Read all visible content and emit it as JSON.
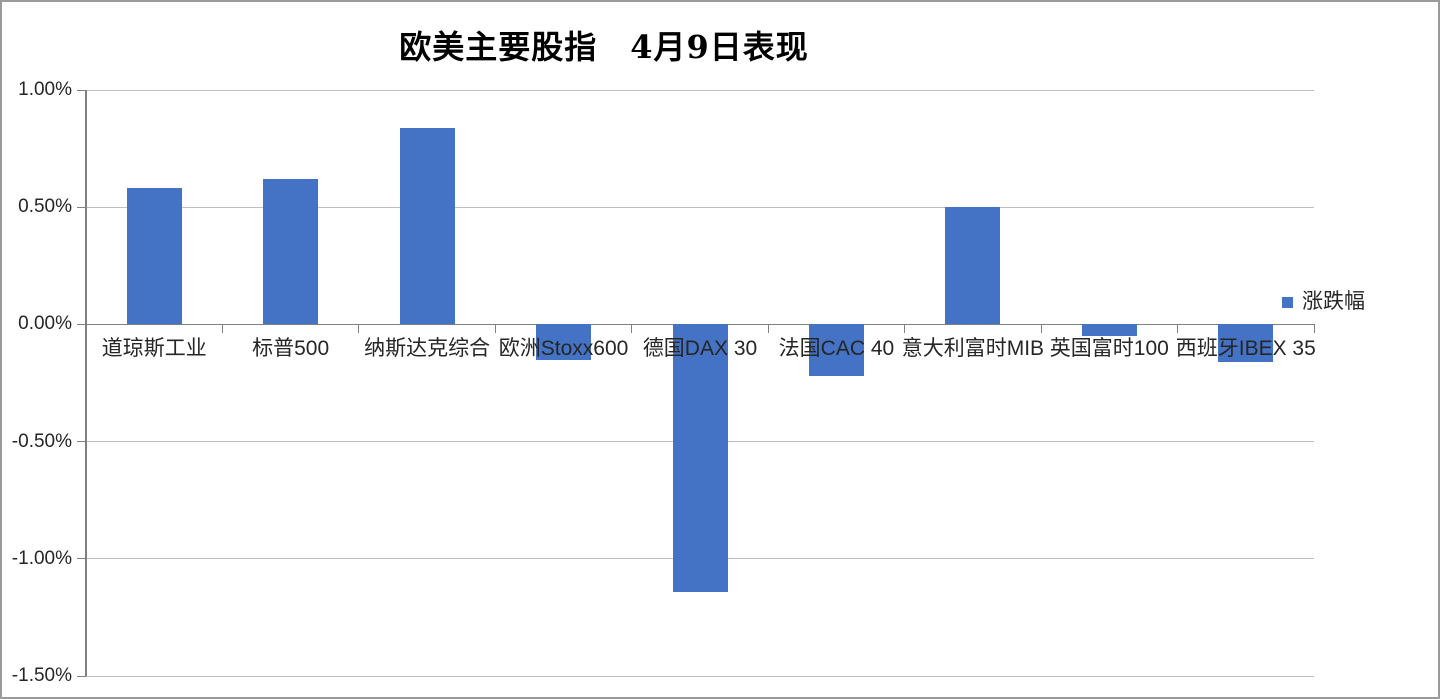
{
  "chart_data": {
    "type": "bar",
    "title": "欧美主要股指　4月9日表现",
    "categories": [
      "道琼斯工业",
      "标普500",
      "纳斯达克综合",
      "欧洲Stoxx600",
      "德国DAX 30",
      "法国CAC 40",
      "意大利富时MIB",
      "英国富时100",
      "西班牙IBEX 35"
    ],
    "series": [
      {
        "name": "涨跌幅",
        "color": "#4472C4",
        "values": [
          0.58,
          0.62,
          0.84,
          -0.15,
          -1.14,
          -0.22,
          0.5,
          -0.05,
          -0.16
        ]
      }
    ],
    "xlabel": "",
    "ylabel": "",
    "ylim": [
      -1.5,
      1.0
    ],
    "ytick_step": 0.5,
    "yticks": [
      {
        "value": 1.0,
        "label": "1.00%"
      },
      {
        "value": 0.5,
        "label": "0.50%"
      },
      {
        "value": 0.0,
        "label": "0.00%"
      },
      {
        "value": -0.5,
        "label": "-0.50%"
      },
      {
        "value": -1.0,
        "label": "-1.00%"
      },
      {
        "value": -1.5,
        "label": "-1.50%"
      }
    ],
    "value_format": "percent",
    "grid": true,
    "legend_position": "right"
  },
  "legend": {
    "label": "涨跌幅"
  },
  "colors": {
    "bar": "#4472C4",
    "gridline": "#BFBFBF",
    "baseline": "#7F7F7F",
    "axis": "#7F7F7F",
    "tick": "#7F7F7F",
    "text": "#262626",
    "title_text": "#000000",
    "border": "#9A9A9A",
    "background": "#FFFFFF"
  }
}
